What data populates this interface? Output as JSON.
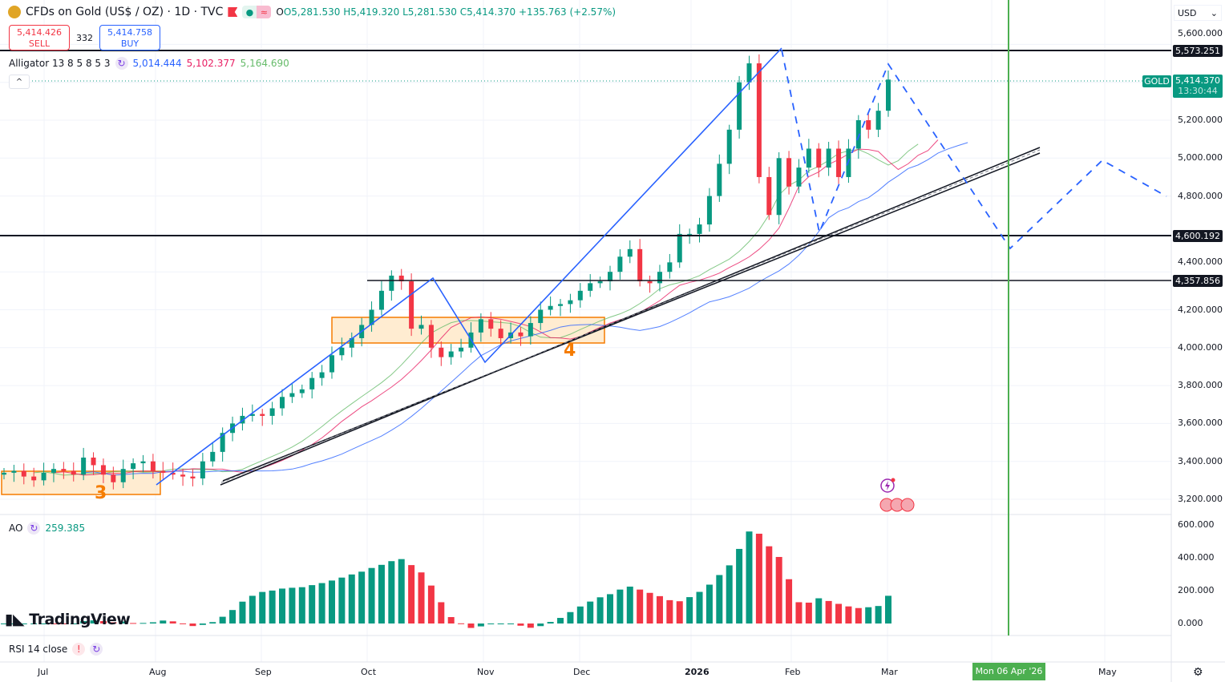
{
  "header": {
    "title": "CFDs on Gold (US$ / OZ) · 1D · TVC",
    "open": "O5,281.530",
    "high": "H5,419.320",
    "low": "L5,281.530",
    "close": "C5,414.370",
    "change": "+135.763 (+2.57%)"
  },
  "trade": {
    "sell_price": "5,414.426",
    "sell_label": "SELL",
    "spread": "332",
    "buy_price": "5,414.758",
    "buy_label": "BUY"
  },
  "alligator": {
    "label": "Alligator 13 8 5 8 5 3",
    "jaw": "5,014.444",
    "teeth": "5,102.377",
    "lips": "5,164.690"
  },
  "ao": {
    "label": "AO",
    "value": "259.385"
  },
  "rsi": {
    "label": "RSI 14 close",
    "warn": "!"
  },
  "currency": "USD",
  "price_scale": [
    "5,600.000",
    "5,200.000",
    "5,000.000",
    "4,800.000",
    "4,400.000",
    "4,200.000",
    "4,000.000",
    "3,800.000",
    "3,600.000",
    "3,400.000",
    "3,200.000"
  ],
  "ao_scale": [
    "600.000",
    "400.000",
    "200.000",
    "0.000"
  ],
  "tags": {
    "resistance": "5,573.251",
    "symbol": "GOLD",
    "last": "5,414.370",
    "countdown": "13:30:44",
    "support1": "4,600.192",
    "support2": "4,357.856"
  },
  "time_axis": [
    "Jul",
    "Aug",
    "Sep",
    "Oct",
    "Nov",
    "Dec",
    "2026",
    "Feb",
    "Mar",
    "May"
  ],
  "cursor_date": "Mon 06 Apr '26",
  "annotations": {
    "box1": "3",
    "box2": "4"
  },
  "watermark": "TradingView",
  "colors": {
    "up": "#089981",
    "down": "#f23645",
    "drawing": "#2962ff",
    "box": "#f57c00",
    "cursor": "#4caf50"
  },
  "chart_data": {
    "type": "candlestick",
    "price_range": [
      3150,
      5650
    ],
    "ao_range": [
      -50,
      620
    ],
    "closes": [
      3340,
      3350,
      3320,
      3300,
      3340,
      3360,
      3350,
      3330,
      3420,
      3380,
      3330,
      3290,
      3360,
      3390,
      3400,
      3350,
      3340,
      3330,
      3320,
      3310,
      3400,
      3450,
      3550,
      3600,
      3640,
      3650,
      3640,
      3680,
      3740,
      3760,
      3780,
      3840,
      3870,
      3960,
      4000,
      4050,
      4120,
      4200,
      4300,
      4380,
      4350,
      4100,
      4120,
      4000,
      3950,
      3980,
      4000,
      4080,
      4150,
      4100,
      4050,
      4080,
      4060,
      4130,
      4200,
      4220,
      4230,
      4250,
      4300,
      4340,
      4350,
      4400,
      4480,
      4520,
      4350,
      4340,
      4400,
      4450,
      4600,
      4600,
      4650,
      4800,
      4970,
      5150,
      5400,
      5500,
      4900,
      4700,
      5000,
      4850,
      4950,
      5050,
      4950,
      5050,
      4900,
      5050,
      5200,
      5150,
      5250,
      5414.37
    ],
    "horizontal_levels": [
      5573.251,
      4600.192,
      4357.856
    ]
  }
}
